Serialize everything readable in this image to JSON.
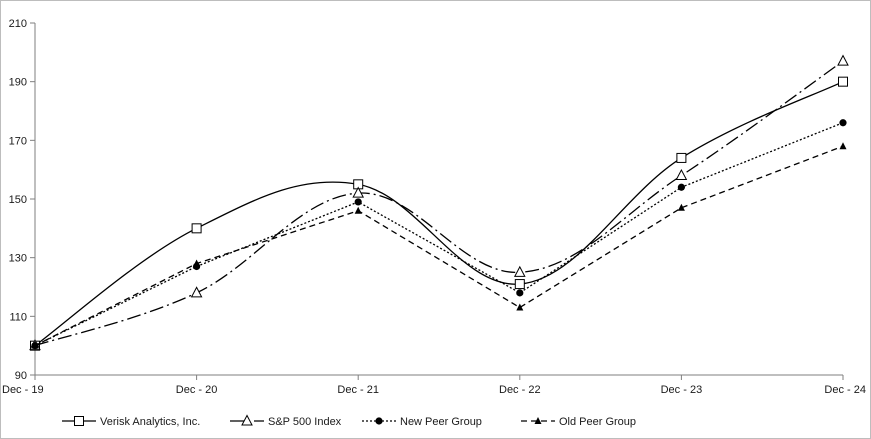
{
  "chart_data": {
    "type": "line",
    "categories": [
      "Dec - 19",
      "Dec - 20",
      "Dec - 21",
      "Dec - 22",
      "Dec - 23",
      "Dec - 24"
    ],
    "ylim": [
      90,
      210
    ],
    "yticks": [
      90,
      110,
      130,
      150,
      170,
      190,
      210
    ],
    "grid": false,
    "legend_position": "bottom",
    "series": [
      {
        "name": "Verisk Analytics, Inc.",
        "values": [
          100,
          140,
          155,
          121,
          164,
          190
        ],
        "color": "#000000",
        "dash": "solid",
        "marker": "open-square",
        "smooth": true
      },
      {
        "name": "S&P 500 Index",
        "values": [
          100,
          118,
          152,
          125,
          158,
          197
        ],
        "color": "#000000",
        "dash": "dash-dot",
        "marker": "open-triangle",
        "smooth": true
      },
      {
        "name": "New Peer Group",
        "values": [
          100,
          127,
          149,
          118,
          154,
          176
        ],
        "color": "#000000",
        "dash": "dotted",
        "marker": "filled-circle",
        "smooth": false
      },
      {
        "name": "Old Peer Group",
        "values": [
          100,
          128,
          146,
          113,
          147,
          168
        ],
        "color": "#000000",
        "dash": "dashed",
        "marker": "filled-triangle",
        "smooth": false
      }
    ]
  }
}
